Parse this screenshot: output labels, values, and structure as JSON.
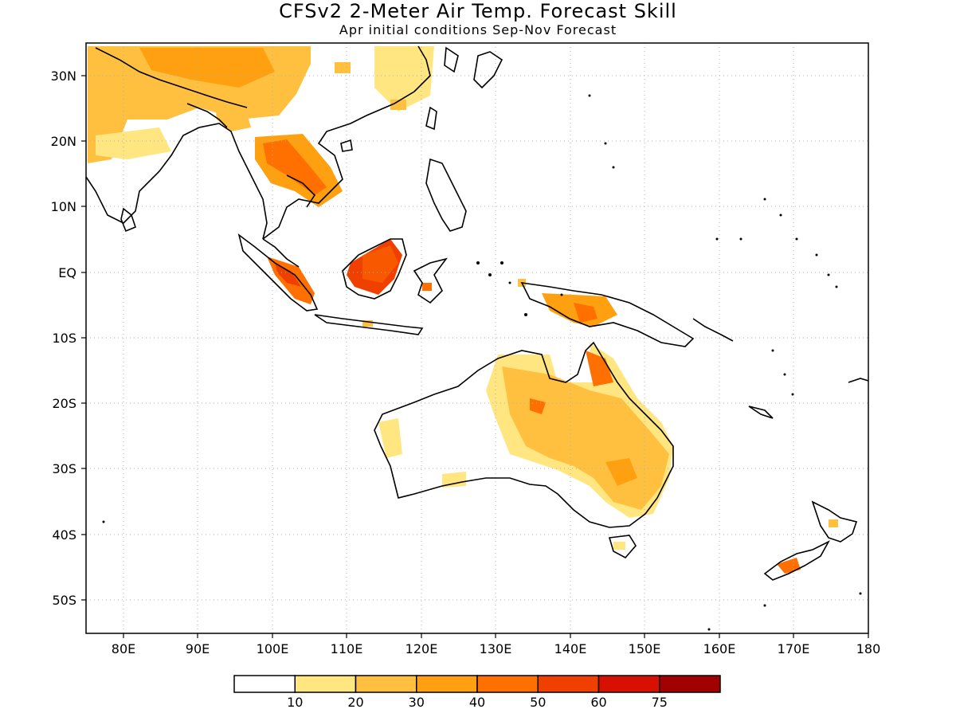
{
  "header": {
    "title": "CFSv2 2-Meter Air Temp. Forecast Skill",
    "subtitle": "Apr initial conditions  Sep-Nov Forecast"
  },
  "map": {
    "lon_range": [
      75,
      180
    ],
    "lat_range": [
      -55,
      35
    ],
    "x_ticks": [
      "80E",
      "90E",
      "100E",
      "110E",
      "120E",
      "130E",
      "140E",
      "150E",
      "160E",
      "170E",
      "180"
    ],
    "x_tick_values": [
      80,
      90,
      100,
      110,
      120,
      130,
      140,
      150,
      160,
      170,
      180
    ],
    "y_ticks": [
      "30N",
      "20N",
      "10N",
      "EQ",
      "10S",
      "20S",
      "30S",
      "40S",
      "50S"
    ],
    "y_tick_values": [
      30,
      20,
      10,
      0,
      -10,
      -20,
      -30,
      -40,
      -50
    ],
    "grid": "dotted",
    "land_outline_color": "#000000"
  },
  "colorbar": {
    "colors": [
      "#ffffff",
      "#ffe680",
      "#ffc040",
      "#ffa010",
      "#ff7000",
      "#f04000",
      "#d81000",
      "#a00000"
    ],
    "labels": [
      "10",
      "20",
      "30",
      "40",
      "50",
      "60",
      "75"
    ]
  }
}
